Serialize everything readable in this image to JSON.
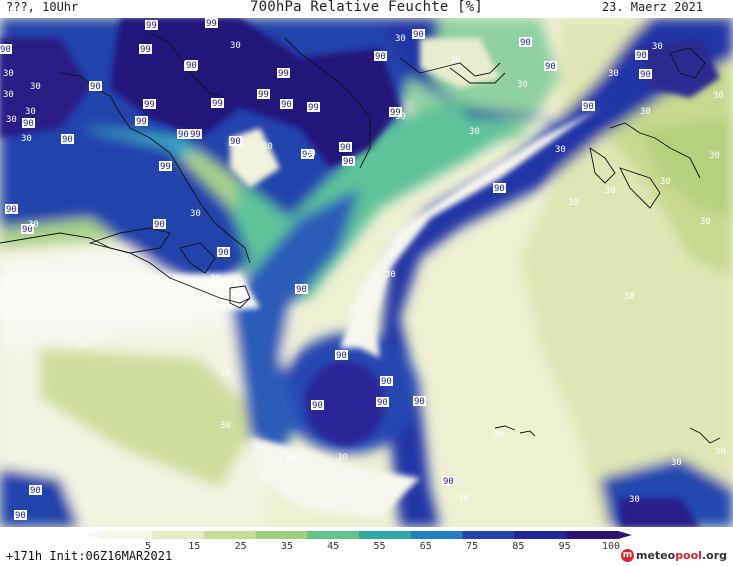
{
  "header": {
    "left": "???, 10Uhr",
    "title": "700hPa Relative Feuchte [%]",
    "date": "23. Maerz 2021"
  },
  "colorbar": {
    "ticks": [
      "5",
      "15",
      "25",
      "35",
      "45",
      "55",
      "65",
      "75",
      "85",
      "95",
      "100"
    ],
    "colors": [
      "#ffffff",
      "#f4f6e8",
      "#e8ecc6",
      "#c9db96",
      "#9fcf7e",
      "#5fc38a",
      "#2ea9a3",
      "#1f7fc0",
      "#2443ac",
      "#1f2697",
      "#2a1470"
    ]
  },
  "footer": {
    "run": "+171h  Init:06Z16MAR2021",
    "logo_brand": "meteo",
    "logo_brand2": "pool",
    "logo_tld": ".org"
  },
  "contour_labels": [
    "99",
    "99",
    "99",
    "99",
    "99",
    "99",
    "99",
    "99",
    "99",
    "99",
    "99",
    "99",
    "99",
    "90",
    "90",
    "90",
    "90",
    "90",
    "90",
    "90",
    "90",
    "90",
    "90",
    "90",
    "90",
    "90",
    "90",
    "90",
    "90",
    "90",
    "90",
    "90",
    "90",
    "90",
    "90",
    "90",
    "90",
    "90",
    "90",
    "90",
    "90",
    "90",
    "90",
    "90",
    "90",
    "30",
    "30",
    "30",
    "30",
    "30",
    "30",
    "30",
    "30",
    "30",
    "30",
    "30",
    "30",
    "30",
    "30",
    "30",
    "30",
    "30",
    "30",
    "30",
    "30",
    "30",
    "30",
    "30",
    "30",
    "30",
    "30",
    "30",
    "30",
    "30",
    "30",
    "30",
    "30",
    "30",
    "30",
    "30",
    "30",
    "30",
    "30",
    "30",
    "30"
  ]
}
